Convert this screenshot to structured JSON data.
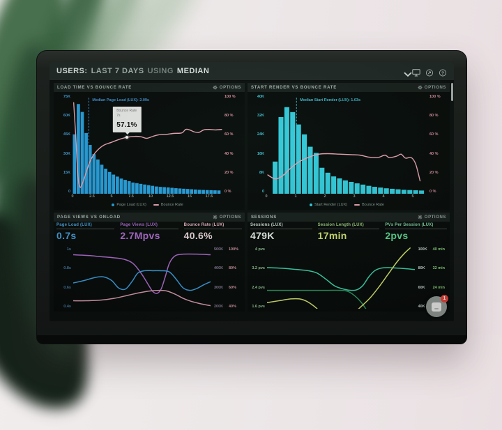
{
  "header": {
    "prefix": "USERS:",
    "range": "LAST 7 DAYS",
    "joiner": "USING",
    "metric": "MEDIAN",
    "icons": [
      {
        "name": "monitor-icon"
      },
      {
        "name": "share-icon"
      },
      {
        "name": "help-icon"
      }
    ]
  },
  "panels": {
    "load_time": {
      "title": "LOAD TIME VS BOUNCE RATE",
      "options": "OPTIONS"
    },
    "start_render": {
      "title": "START RENDER VS BOUNCE RATE",
      "options": "OPTIONS"
    },
    "page_views": {
      "title": "PAGE VIEWS VS ONLOAD",
      "options": "OPTIONS",
      "metrics": [
        {
          "label": "Page Load (LUX)",
          "value": "0.7s",
          "label_color": "#4aa3e0",
          "value_color": "#4aa3e0"
        },
        {
          "label": "Page Views (LUX)",
          "value": "2.7Mpvs",
          "label_color": "#b06cd4",
          "value_color": "#b56fd6"
        },
        {
          "label": "Bounce Rate (LUX)",
          "value": "40.6%",
          "label_color": "#edb8c6",
          "value_color": "#f4dee4"
        }
      ]
    },
    "sessions": {
      "title": "SESSIONS",
      "options": "OPTIONS",
      "metrics": [
        {
          "label": "Sessions (LUX)",
          "value": "479K",
          "label_color": "#d5e8dd",
          "value_color": "#eef7f1"
        },
        {
          "label": "Session Length (LUX)",
          "value": "17min",
          "label_color": "#9fd083",
          "value_color": "#d7e97a"
        },
        {
          "label": "PVs Per Session (LUX)",
          "value": "2pvs",
          "label_color": "#83d9a6",
          "value_color": "#62dd96"
        }
      ],
      "chat_badge": "1"
    }
  },
  "chart_data": [
    {
      "id": "load-time-hist",
      "type": "histogram-line",
      "title": "LOAD TIME VS BOUNCE RATE",
      "xlim": [
        0,
        19.2
      ],
      "x_ticks": [
        [
          0,
          "0"
        ],
        [
          2.5,
          "2.5"
        ],
        [
          5,
          "5"
        ],
        [
          7.5,
          "7.5"
        ],
        [
          10,
          "10"
        ],
        [
          12.5,
          "12.5"
        ],
        [
          15,
          "15"
        ],
        [
          17.5,
          "17.5"
        ]
      ],
      "left_ticks": [
        "75K",
        "60K",
        "45K",
        "30K",
        "15K",
        "0"
      ],
      "left_max_k": 75,
      "left_color": "#4b9fd6",
      "right_ticks": [
        "100 %",
        "80 %",
        "60 %",
        "40 %",
        "20 %",
        "0 %"
      ],
      "right_max": 100,
      "right_color": "#e094a6",
      "bars": {
        "label": "Page Load (LUX)",
        "color": "#2aa6e6",
        "bin_width": 0.5,
        "start": 0,
        "values_k": [
          45,
          68,
          62,
          46,
          37,
          30,
          26,
          22,
          19,
          16.5,
          14.5,
          13,
          11.5,
          10.5,
          9.5,
          8.5,
          8,
          7.5,
          7,
          6.5,
          6,
          5.5,
          5.2,
          5,
          4.8,
          4.5,
          4.2,
          4,
          3.8,
          3.6,
          3.4,
          3.2,
          3,
          2.9,
          2.8,
          2.7,
          2.6,
          2.5
        ]
      },
      "line": {
        "label": "Bounce Rate",
        "color": "#f0a8b8",
        "points": [
          [
            0.15,
            92
          ],
          [
            0.4,
            60
          ],
          [
            0.7,
            18
          ],
          [
            0.95,
            7
          ],
          [
            1.2,
            9
          ],
          [
            1.6,
            18
          ],
          [
            2.1,
            30
          ],
          [
            2.6,
            38
          ],
          [
            3.2,
            44
          ],
          [
            4,
            49
          ],
          [
            5,
            52
          ],
          [
            6,
            55
          ],
          [
            7,
            57.1
          ],
          [
            8,
            58
          ],
          [
            8.8,
            57.5
          ],
          [
            9.5,
            56
          ],
          [
            10.3,
            58
          ],
          [
            11,
            59.5
          ],
          [
            12,
            60
          ],
          [
            13,
            61
          ],
          [
            14,
            61.5
          ],
          [
            14.5,
            65
          ],
          [
            15,
            64.5
          ],
          [
            15.6,
            62.5
          ],
          [
            16.2,
            62
          ],
          [
            16.8,
            64.5
          ],
          [
            17.5,
            65
          ],
          [
            18.3,
            64.5
          ],
          [
            19.1,
            65
          ]
        ]
      },
      "median": {
        "x": 2.09,
        "label": "Median Page Load (LUX): 2.09s",
        "color": "#4596d9"
      },
      "tooltip": {
        "lines": [
          "Bounce Rate",
          "7s"
        ],
        "value": "57.1%",
        "x": 7,
        "y": 57.1
      },
      "legend": [
        {
          "label": "Page Load (LUX)",
          "color": "#2aa6e6",
          "marker": "dot"
        },
        {
          "label": "Bounce Rate",
          "color": "#f0a8b8",
          "marker": "line"
        }
      ]
    },
    {
      "id": "start-render-hist",
      "type": "histogram-line",
      "title": "START RENDER VS BOUNCE RATE",
      "xlim": [
        0,
        5.5
      ],
      "x_ticks": [
        [
          0,
          "0"
        ],
        [
          1,
          "1"
        ],
        [
          2,
          "2"
        ],
        [
          3,
          "3"
        ],
        [
          4,
          "4"
        ],
        [
          5,
          "5"
        ]
      ],
      "left_ticks": [
        "40K",
        "32K",
        "24K",
        "16K",
        "8K",
        "0"
      ],
      "left_max_k": 40,
      "left_color": "#46c8da",
      "right_ticks": [
        "100 %",
        "80 %",
        "60 %",
        "40 %",
        "20 %",
        "0 %"
      ],
      "right_max": 100,
      "right_color": "#e094a6",
      "bars": {
        "label": "Start Render (LUX)",
        "color": "#36d3e4",
        "bin_width": 0.2,
        "start": 0,
        "values_k": [
          0,
          13,
          31,
          35,
          33,
          28,
          24,
          19,
          16.5,
          10.5,
          8.5,
          7,
          6.2,
          5.4,
          4.8,
          4.2,
          3.7,
          3.2,
          2.8,
          2.5,
          2.2,
          2,
          1.8,
          1.6,
          1.5,
          1.4,
          1.3
        ]
      },
      "line": {
        "label": "Bounce Rate",
        "color": "#f0a8b8",
        "points": [
          [
            0.05,
            19
          ],
          [
            0.3,
            15
          ],
          [
            0.55,
            18
          ],
          [
            0.8,
            25
          ],
          [
            1.05,
            31
          ],
          [
            1.3,
            35
          ],
          [
            1.55,
            38
          ],
          [
            1.8,
            40
          ],
          [
            2.1,
            40.5
          ],
          [
            2.5,
            40
          ],
          [
            2.9,
            39.5
          ],
          [
            3.2,
            39
          ],
          [
            3.5,
            37
          ],
          [
            3.8,
            36.5
          ],
          [
            4.05,
            39
          ],
          [
            4.2,
            36.5
          ],
          [
            4.45,
            38
          ],
          [
            4.6,
            40
          ],
          [
            4.75,
            36
          ],
          [
            4.95,
            36.5
          ],
          [
            5.1,
            30
          ],
          [
            5.25,
            13
          ]
        ]
      },
      "median": {
        "x": 1.03,
        "label": "Median Start Render (LUX): 1.03s",
        "color": "#3fc0d4"
      },
      "tooltip": null,
      "legend": [
        {
          "label": "Start Render (LUX)",
          "color": "#36d3e4",
          "marker": "dot"
        },
        {
          "label": "Bounce Rate",
          "color": "#f0a8b8",
          "marker": "line"
        }
      ]
    },
    {
      "id": "page-views-lines",
      "type": "multi-line",
      "title": "PAGE VIEWS VS ONLOAD",
      "left_ticks": [
        "1s",
        "0.8s",
        "0.6s",
        "0.4s"
      ],
      "left_color": "#4a7fae",
      "right_pairs": [
        [
          "500K",
          "100%"
        ],
        [
          "400K",
          "80%"
        ],
        [
          "300K",
          "60%"
        ],
        [
          "200K",
          "40%"
        ]
      ],
      "right_colors": [
        "#8d7f9e",
        "#d89aaa"
      ],
      "series": [
        {
          "name": "Page Views (LUX)",
          "color": "#b56fd6",
          "points": [
            [
              0,
              88
            ],
            [
              10,
              87
            ],
            [
              20,
              85
            ],
            [
              30,
              83
            ],
            [
              38,
              80
            ],
            [
              44,
              73
            ],
            [
              50,
              56
            ],
            [
              55,
              38
            ],
            [
              58,
              28
            ],
            [
              61,
              25
            ],
            [
              64,
              32
            ],
            [
              67,
              52
            ],
            [
              70,
              74
            ],
            [
              74,
              86
            ],
            [
              80,
              89
            ],
            [
              90,
              89
            ],
            [
              100,
              88
            ]
          ]
        },
        {
          "name": "Page Load (LUX)",
          "color": "#3fa2e6",
          "points": [
            [
              0,
              42
            ],
            [
              8,
              46
            ],
            [
              16,
              51
            ],
            [
              22,
              52
            ],
            [
              28,
              46
            ],
            [
              33,
              34
            ],
            [
              38,
              32
            ],
            [
              43,
              45
            ],
            [
              47,
              58
            ],
            [
              52,
              62
            ],
            [
              58,
              62
            ],
            [
              64,
              62
            ],
            [
              70,
              60
            ],
            [
              75,
              48
            ],
            [
              80,
              34
            ],
            [
              85,
              30
            ],
            [
              90,
              33
            ],
            [
              95,
              39
            ],
            [
              100,
              44
            ]
          ]
        },
        {
          "name": "Bounce Rate (LUX)",
          "color": "#e2a2b6",
          "points": [
            [
              0,
              13
            ],
            [
              10,
              13
            ],
            [
              20,
              14
            ],
            [
              30,
              17
            ],
            [
              40,
              22
            ],
            [
              48,
              26
            ],
            [
              56,
              29
            ],
            [
              63,
              30
            ],
            [
              68,
              29
            ],
            [
              74,
              24
            ],
            [
              80,
              17
            ],
            [
              86,
              12
            ],
            [
              93,
              8
            ],
            [
              100,
              5
            ]
          ]
        }
      ]
    },
    {
      "id": "sessions-lines",
      "type": "multi-line",
      "title": "SESSIONS",
      "left_ticks": [
        "4 pvs",
        "3.2 pvs",
        "2.4 pvs",
        "1.6 pvs"
      ],
      "left_color": "#9ccf9f",
      "right_pairs": [
        [
          "100K",
          "40 min"
        ],
        [
          "80K",
          "32 min"
        ],
        [
          "60K",
          "24 min"
        ],
        [
          "40K",
          ""
        ]
      ],
      "right_colors": [
        "#cfdcd4",
        "#8fd982"
      ],
      "series": [
        {
          "name": "PVs Per Session (LUX)",
          "color": "#3edcb0",
          "points": [
            [
              0,
              67
            ],
            [
              10,
              66
            ],
            [
              20,
              64
            ],
            [
              28,
              62
            ],
            [
              34,
              58
            ],
            [
              40,
              48
            ],
            [
              46,
              37
            ],
            [
              52,
              32
            ],
            [
              57,
              30
            ],
            [
              61,
              31
            ],
            [
              65,
              38
            ],
            [
              69,
              52
            ],
            [
              73,
              62
            ],
            [
              77,
              66
            ],
            [
              82,
              67
            ],
            [
              90,
              66
            ],
            [
              100,
              64
            ]
          ]
        },
        {
          "name": "Sessions (LUX)",
          "color": "#2e9e66",
          "points": [
            [
              0,
              30
            ],
            [
              20,
              30
            ],
            [
              40,
              30
            ],
            [
              50,
              30
            ],
            [
              55,
              28
            ],
            [
              60,
              20
            ],
            [
              64,
              10
            ],
            [
              68,
              -4
            ],
            [
              70,
              -12
            ]
          ]
        },
        {
          "name": "Session Length (LUX)",
          "color": "#dcec74",
          "points": [
            [
              0,
              10
            ],
            [
              8,
              13
            ],
            [
              16,
              16
            ],
            [
              22,
              16
            ],
            [
              27,
              12
            ],
            [
              32,
              4
            ],
            [
              38,
              -8
            ],
            [
              45,
              -14
            ],
            [
              52,
              -14
            ],
            [
              58,
              -8
            ],
            [
              64,
              4
            ],
            [
              70,
              18
            ],
            [
              76,
              36
            ],
            [
              82,
              56
            ],
            [
              88,
              76
            ],
            [
              93,
              90
            ],
            [
              97,
              99
            ]
          ]
        }
      ]
    }
  ]
}
